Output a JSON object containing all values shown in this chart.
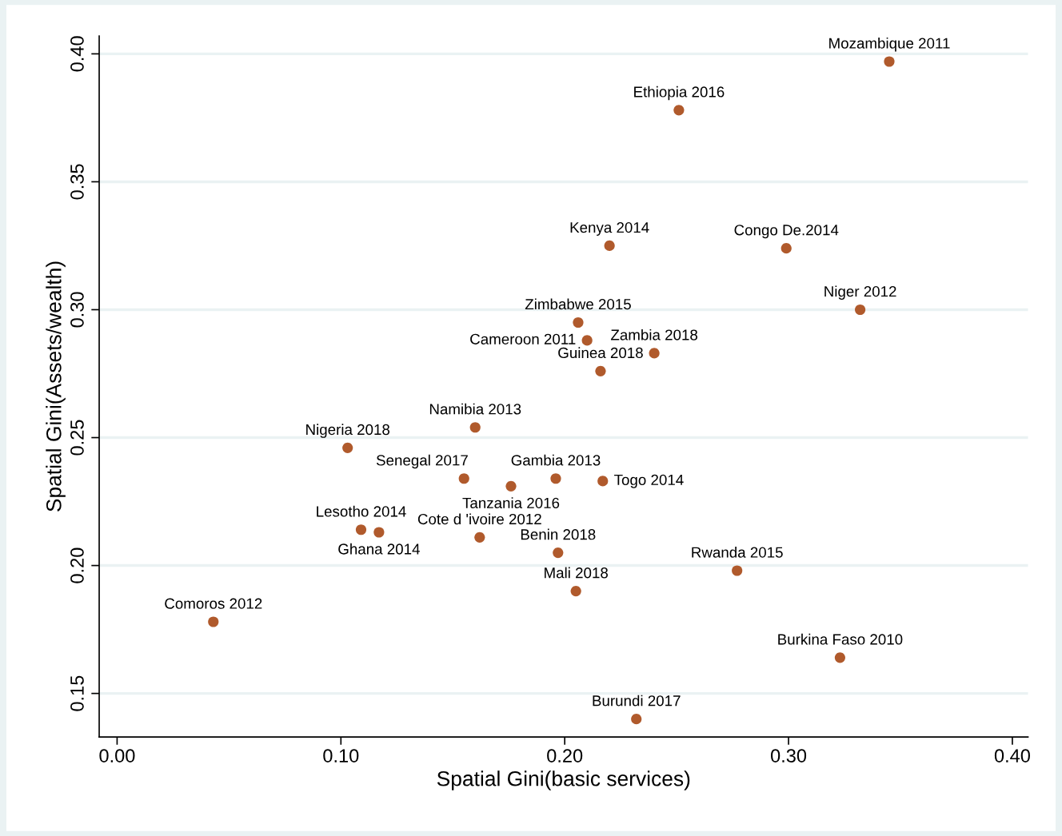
{
  "chart_data": {
    "type": "scatter",
    "xlabel": "Spatial Gini(basic services)",
    "ylabel": "Spatial Gini(Assets/wealth)",
    "x": [
      0.345,
      0.251,
      0.22,
      0.299,
      0.332,
      0.206,
      0.21,
      0.24,
      0.216,
      0.16,
      0.103,
      0.155,
      0.176,
      0.196,
      0.217,
      0.109,
      0.117,
      0.162,
      0.197,
      0.277,
      0.205,
      0.043,
      0.323,
      0.232
    ],
    "values": [
      0.397,
      0.378,
      0.325,
      0.324,
      0.3,
      0.295,
      0.288,
      0.283,
      0.276,
      0.254,
      0.246,
      0.234,
      0.231,
      0.234,
      0.233,
      0.214,
      0.213,
      0.211,
      0.205,
      0.198,
      0.19,
      0.178,
      0.164,
      0.14
    ],
    "color": "#b05a2c",
    "marker": "circle",
    "grid": "y",
    "xlim": [
      -0.008,
      0.407
    ],
    "ylim": [
      0.133,
      0.407
    ],
    "xticks": [
      {
        "value": 0,
        "label": "0.00"
      },
      {
        "value": 0.1,
        "label": "0.10"
      },
      {
        "value": 0.2,
        "label": "0.20"
      },
      {
        "value": 0.3,
        "label": "0.30"
      },
      {
        "value": 0.4,
        "label": "0.40"
      }
    ],
    "yticks": [
      {
        "value": 0.15,
        "label": "0.15"
      },
      {
        "value": 0.2,
        "label": "0.20"
      },
      {
        "value": 0.25,
        "label": "0.25"
      },
      {
        "value": 0.3,
        "label": "0.30"
      },
      {
        "value": 0.35,
        "label": "0.35"
      },
      {
        "value": 0.4,
        "label": "0.40"
      }
    ],
    "annotations": [
      {
        "text": "Mozambique 2011",
        "x": 0.345,
        "y": 0.397
      },
      {
        "text": "Ethiopia 2016",
        "x": 0.251,
        "y": 0.378
      },
      {
        "text": "Kenya 2014",
        "x": 0.22,
        "y": 0.325
      },
      {
        "text": "Congo De.2014",
        "x": 0.299,
        "y": 0.324
      },
      {
        "text": "Niger 2012",
        "x": 0.332,
        "y": 0.3
      },
      {
        "text": "Zimbabwe 2015",
        "x": 0.206,
        "y": 0.295
      },
      {
        "text": "Cameroon 2011",
        "x": 0.21,
        "y": 0.288
      },
      {
        "text": "Zambia 2018",
        "x": 0.24,
        "y": 0.283
      },
      {
        "text": "Guinea 2018",
        "x": 0.216,
        "y": 0.276
      },
      {
        "text": "Namibia 2013",
        "x": 0.16,
        "y": 0.254
      },
      {
        "text": "Nigeria 2018",
        "x": 0.103,
        "y": 0.246
      },
      {
        "text": "Senegal 2017",
        "x": 0.155,
        "y": 0.234
      },
      {
        "text": "Tanzania 2016",
        "x": 0.176,
        "y": 0.231
      },
      {
        "text": "Gambia 2013",
        "x": 0.196,
        "y": 0.234
      },
      {
        "text": "Togo 2014",
        "x": 0.217,
        "y": 0.233
      },
      {
        "text": "Lesotho 2014",
        "x": 0.109,
        "y": 0.214
      },
      {
        "text": "Ghana 2014",
        "x": 0.117,
        "y": 0.213
      },
      {
        "text": "Cote d 'ivoire 2012",
        "x": 0.162,
        "y": 0.211
      },
      {
        "text": "Benin 2018",
        "x": 0.197,
        "y": 0.205
      },
      {
        "text": "Rwanda 2015",
        "x": 0.277,
        "y": 0.198
      },
      {
        "text": "Mali 2018",
        "x": 0.205,
        "y": 0.19
      },
      {
        "text": "Comoros 2012",
        "x": 0.043,
        "y": 0.178
      },
      {
        "text": "Burkina Faso 2010",
        "x": 0.323,
        "y": 0.164
      },
      {
        "text": "Burundi 2017",
        "x": 0.232,
        "y": 0.14
      }
    ]
  }
}
